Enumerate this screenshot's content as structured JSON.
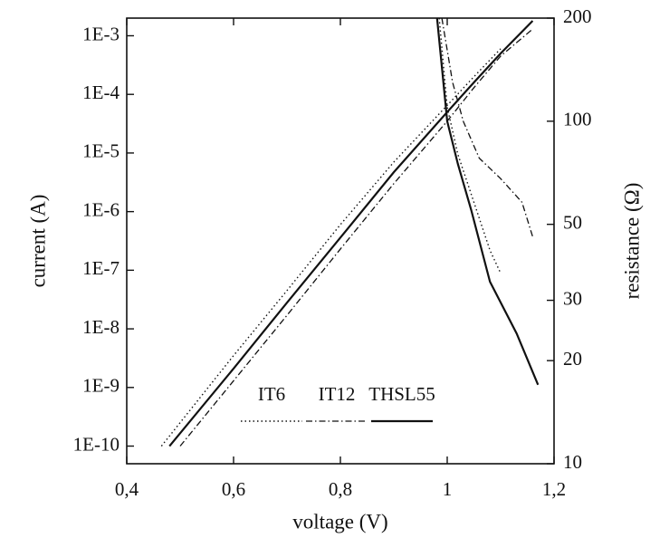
{
  "chart_data": {
    "type": "line",
    "x_label": "voltage (V)",
    "y_label": "current (A)",
    "y2_label": "resistance (Ω)",
    "xlim": [
      0.4,
      1.2
    ],
    "xticks": [
      {
        "value": 0.4,
        "label": "0,4"
      },
      {
        "value": 0.6,
        "label": "0,6"
      },
      {
        "value": 0.8,
        "label": "0,8"
      },
      1,
      {
        "value": 1.2,
        "label": "1,2"
      }
    ],
    "ylim": [
      5e-11,
      0.002
    ],
    "ylog": true,
    "yticks": [
      {
        "value": 1e-10,
        "label": "1E-10"
      },
      {
        "value": 1e-09,
        "label": "1E-9"
      },
      {
        "value": 1e-08,
        "label": "1E-8"
      },
      {
        "value": 1e-07,
        "label": "1E-7"
      },
      {
        "value": 1e-06,
        "label": "1E-6"
      },
      {
        "value": 1e-05,
        "label": "1E-5"
      },
      {
        "value": 0.0001,
        "label": "1E-4"
      },
      {
        "value": 0.001,
        "label": "1E-3"
      }
    ],
    "y2lim": [
      10,
      200
    ],
    "y2log": true,
    "y2ticks": [
      10,
      20,
      30,
      50,
      100,
      200
    ],
    "legend": "lower right",
    "series": [
      {
        "name": "IT6",
        "color": "#111111",
        "dash": "dotted",
        "x": [
          0.465,
          0.6,
          0.7,
          0.8,
          0.9,
          1.0,
          1.05,
          1.1
        ],
        "values": [
          1e-10,
          3.5e-09,
          4.5e-08,
          6e-07,
          7e-06,
          6.5e-05,
          0.0002,
          0.0006
        ],
        "resistance_x": [
          0.985,
          1.0,
          1.02,
          1.05,
          1.08,
          1.1
        ],
        "resistance": [
          200,
          110,
          80,
          58,
          42,
          36
        ]
      },
      {
        "name": "IT12",
        "color": "#111111",
        "dash": "dashdot",
        "x": [
          0.5,
          0.6,
          0.7,
          0.8,
          0.9,
          1.0,
          1.05,
          1.1,
          1.16
        ],
        "values": [
          1e-10,
          1.3e-09,
          1.7e-08,
          2.3e-07,
          3e-06,
          3.5e-05,
          0.00013,
          0.00045,
          0.0013
        ],
        "resistance_x": [
          0.99,
          1.01,
          1.03,
          1.06,
          1.1,
          1.14,
          1.16
        ],
        "resistance": [
          200,
          130,
          100,
          78,
          68,
          58,
          46
        ]
      },
      {
        "name": "THSL55",
        "color": "#111111",
        "dash": "solid",
        "x": [
          0.48,
          0.6,
          0.7,
          0.8,
          0.9,
          1.0,
          1.05,
          1.1,
          1.16
        ],
        "values": [
          1e-10,
          2.1e-09,
          2.8e-08,
          3.6e-07,
          4.7e-06,
          5e-05,
          0.00016,
          0.0005,
          0.0018
        ],
        "resistance_x": [
          0.981,
          1.0,
          1.02,
          1.045,
          1.08,
          1.13,
          1.17
        ],
        "resistance": [
          200,
          100,
          75,
          55,
          34,
          24,
          17
        ]
      }
    ]
  }
}
